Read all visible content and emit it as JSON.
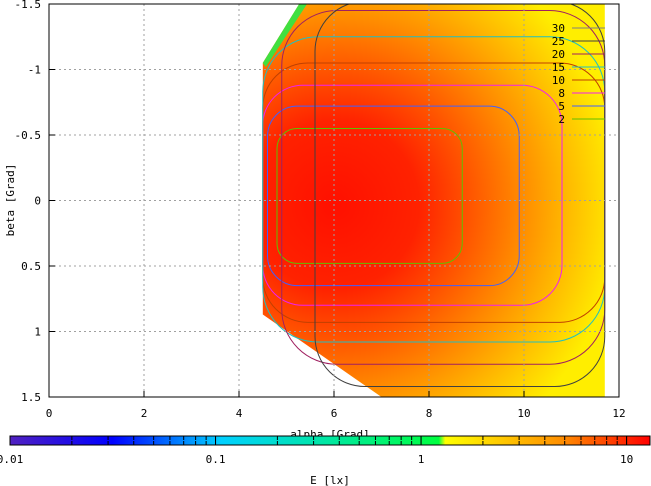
{
  "chart_data": {
    "type": "heatmap",
    "xlabel": "alpha [Grad]",
    "ylabel": "beta [Grad]",
    "xlim": [
      0,
      12
    ],
    "ylim": [
      -1.5,
      1.5
    ],
    "y_axis_inverted": true,
    "x_ticks": [
      "0",
      "2",
      "4",
      "6",
      "8",
      "10",
      "12"
    ],
    "y_ticks": [
      "-1.5",
      "-1",
      "-0.5",
      "0",
      "0.5",
      "1",
      "1.5"
    ],
    "grid": true,
    "legend_position": "top-right",
    "contour_levels": [
      {
        "label": "30",
        "value": 30,
        "color": "#808080"
      },
      {
        "label": "25",
        "value": 25,
        "color": "#404040"
      },
      {
        "label": "20",
        "value": 20,
        "color": "#a02060"
      },
      {
        "label": "15",
        "value": 15,
        "color": "#20c0c0"
      },
      {
        "label": "10",
        "value": 10,
        "color": "#c04000"
      },
      {
        "label": "8",
        "value": 8,
        "color": "#f020f0"
      },
      {
        "label": "5",
        "value": 5,
        "color": "#4060ff"
      },
      {
        "label": "2",
        "value": 2,
        "color": "#60c000"
      }
    ],
    "data_region": {
      "alpha_range": [
        4.5,
        11.7
      ],
      "beta_top_edge": [
        [
          4.5,
          -1.05
        ],
        [
          5.3,
          -1.52
        ],
        [
          11.7,
          -1.52
        ]
      ],
      "beta_bottom_edge": [
        [
          4.5,
          0.87
        ],
        [
          7.0,
          1.5
        ],
        [
          11.7,
          1.5
        ]
      ]
    },
    "colorbar": {
      "label": "E [lx]",
      "scale": "log",
      "range": [
        0.01,
        13
      ],
      "ticks": [
        "0.01",
        "0.1",
        "1",
        "10"
      ],
      "colors": [
        "#5020c0",
        "#0000ff",
        "#00ffff",
        "#00ff40",
        "#ffff00",
        "#ff9000",
        "#ff0000"
      ]
    }
  }
}
